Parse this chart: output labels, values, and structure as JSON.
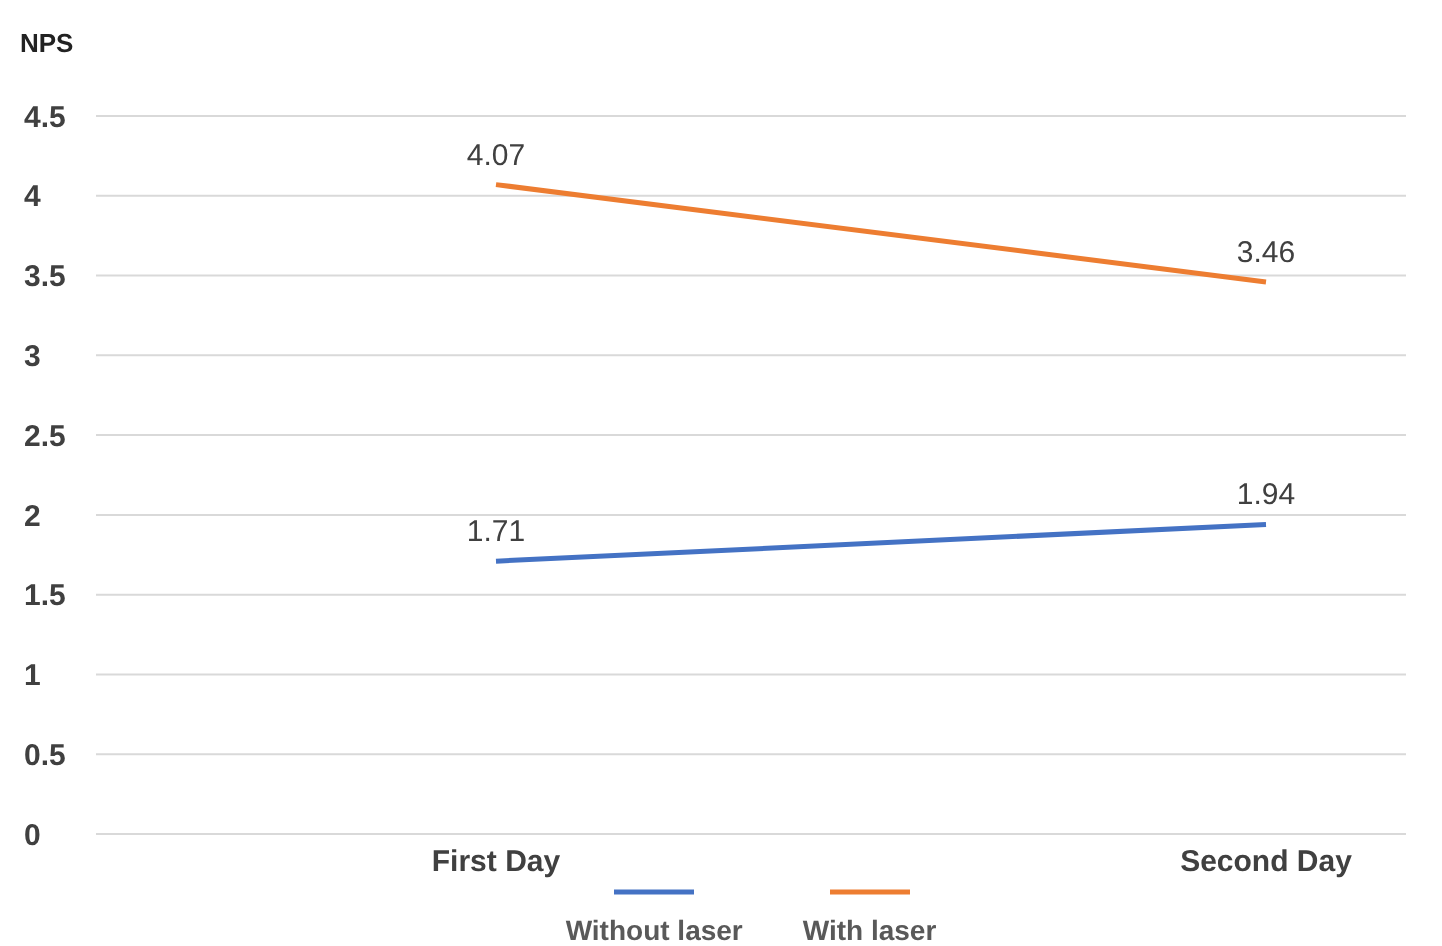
{
  "chart_data": {
    "type": "line",
    "ylabel": "NPS",
    "categories": [
      "First Day",
      "Second Day"
    ],
    "series": [
      {
        "name": "Without laser",
        "color": "#4472c4",
        "values": [
          1.71,
          1.94
        ]
      },
      {
        "name": "With laser",
        "color": "#ed7d31",
        "values": [
          4.07,
          3.46
        ]
      }
    ],
    "ylim": [
      0,
      4.5
    ],
    "yticks": [
      0,
      0.5,
      1,
      1.5,
      2,
      2.5,
      3,
      3.5,
      4,
      4.5
    ],
    "grid": "y",
    "legend": "bottom",
    "marker": "none",
    "line_style": "solid",
    "data_labels": true
  }
}
